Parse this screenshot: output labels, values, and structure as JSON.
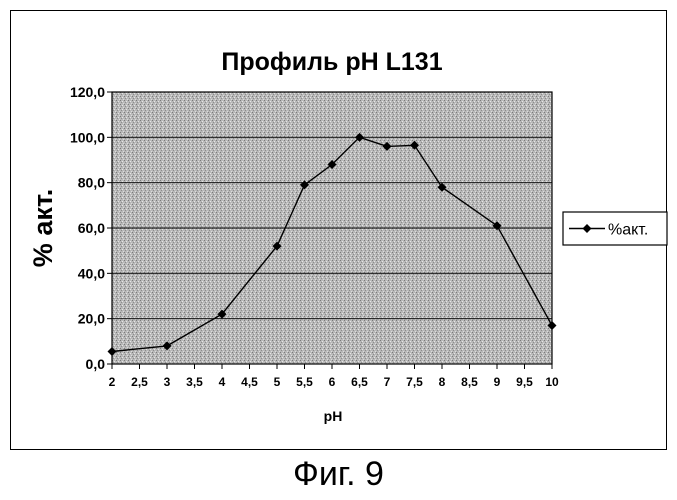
{
  "chart_data": {
    "type": "line",
    "title": "Профиль pH L131",
    "xlabel": "pH",
    "ylabel": "% акт.",
    "x_tick_labels": [
      "2",
      "2,5",
      "3",
      "3,5",
      "4",
      "4,5",
      "5",
      "5,5",
      "6",
      "6,5",
      "7",
      "7,5",
      "8",
      "8,5",
      "9",
      "9,5",
      "10"
    ],
    "y_tick_labels": [
      "0,0",
      "20,0",
      "40,0",
      "60,0",
      "80,0",
      "100,0",
      "120,0"
    ],
    "xlim": [
      2,
      10
    ],
    "ylim": [
      0,
      120
    ],
    "grid": true,
    "legend_position": "right",
    "series": [
      {
        "name": "%акт.",
        "color": "#000000",
        "marker": "diamond",
        "points": [
          {
            "x": 2,
            "y": 5.5
          },
          {
            "x": 3,
            "y": 8
          },
          {
            "x": 4,
            "y": 22
          },
          {
            "x": 5,
            "y": 52
          },
          {
            "x": 5.5,
            "y": 79
          },
          {
            "x": 6,
            "y": 88
          },
          {
            "x": 6.5,
            "y": 100
          },
          {
            "x": 7,
            "y": 96
          },
          {
            "x": 7.5,
            "y": 96.5
          },
          {
            "x": 8,
            "y": 78
          },
          {
            "x": 9,
            "y": 61
          },
          {
            "x": 10,
            "y": 17
          }
        ]
      }
    ],
    "plot_background": "#b8b8b8"
  },
  "caption": "Фиг. 9"
}
